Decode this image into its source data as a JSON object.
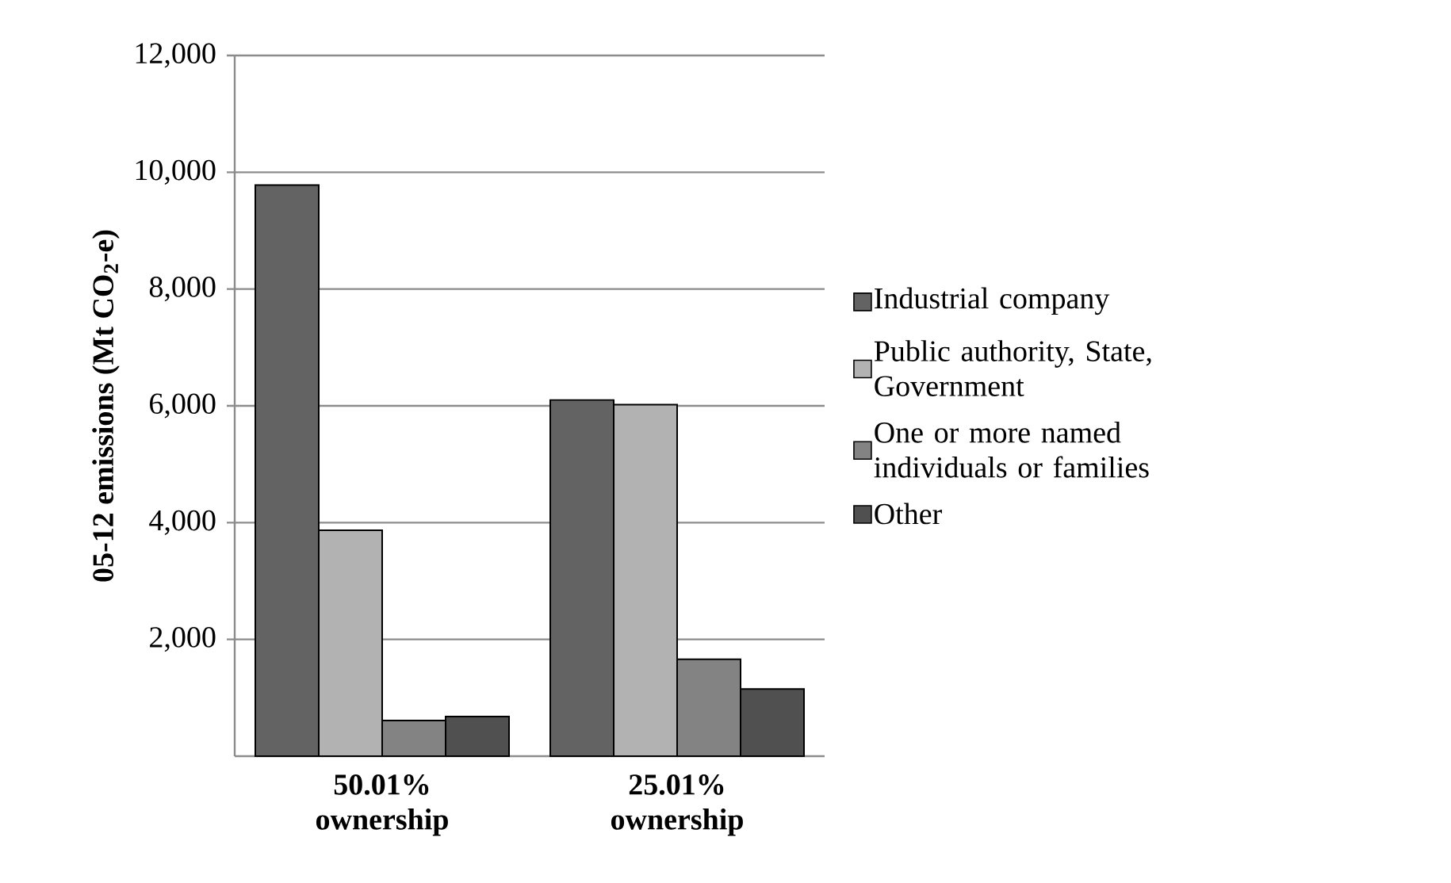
{
  "chart_data": {
    "type": "bar",
    "ylabel": "05-12 emissions (Mt CO$_{2}$-e)",
    "categories": [
      "50.01% ownership",
      "25.01% ownership"
    ],
    "series": [
      {
        "name": "Industrial company",
        "color": "#636363",
        "values": [
          9780,
          6100
        ]
      },
      {
        "name": "Public authority, State, Government",
        "color": "#b2b2b2",
        "values": [
          3870,
          6020
        ]
      },
      {
        "name": "One or more named individuals or families",
        "color": "#838383",
        "values": [
          610,
          1660
        ]
      },
      {
        "name": "Other",
        "color": "#505050",
        "values": [
          680,
          1150
        ]
      }
    ],
    "ylim": [
      0,
      12000
    ],
    "yticks": [
      {
        "value": 2000,
        "label": "2,000"
      },
      {
        "value": 4000,
        "label": "4,000"
      },
      {
        "value": 6000,
        "label": "6,000"
      },
      {
        "value": 8000,
        "label": "8,000"
      },
      {
        "value": 10000,
        "label": "10,000"
      },
      {
        "value": 12000,
        "label": "12,000"
      }
    ],
    "grid": "y",
    "legend": "right"
  }
}
